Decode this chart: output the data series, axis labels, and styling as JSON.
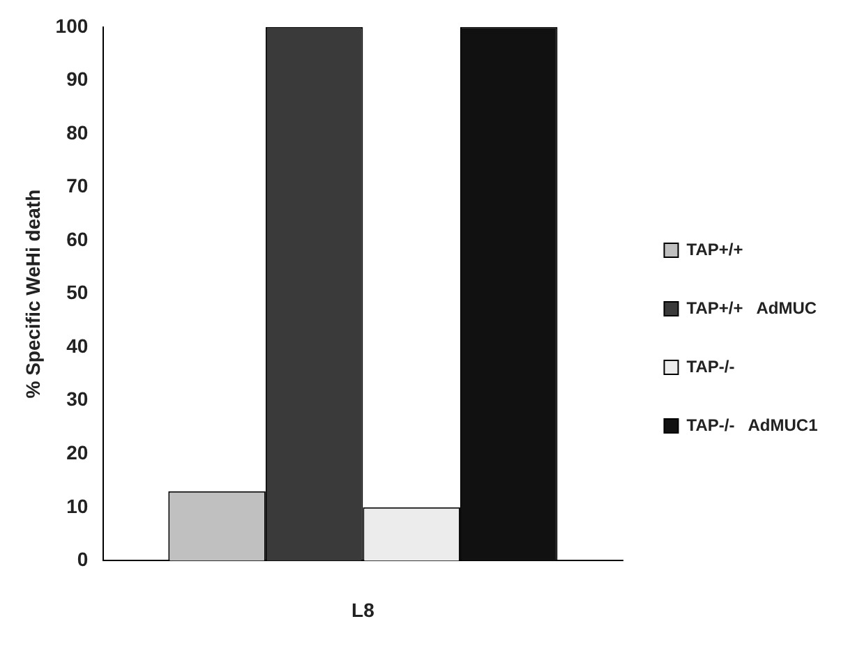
{
  "chart_data": {
    "type": "bar",
    "ylabel": "% Specific WeHi death",
    "categories": [
      "L8"
    ],
    "series": [
      {
        "name": "TAP+/+",
        "color": "#c0c0c0",
        "values": [
          13
        ]
      },
      {
        "name": "TAP+/+   AdMUC",
        "color": "#3a3a3a",
        "values": [
          100
        ]
      },
      {
        "name": "TAP-/-",
        "color": "#ececec",
        "values": [
          10
        ]
      },
      {
        "name": "TAP-/-   AdMUC1",
        "color": "#111111",
        "values": [
          100
        ]
      }
    ],
    "ylim": [
      0,
      100
    ],
    "yticks": [
      0,
      10,
      20,
      30,
      40,
      50,
      60,
      70,
      80,
      90,
      100
    ],
    "grid": false,
    "legend": "right"
  }
}
